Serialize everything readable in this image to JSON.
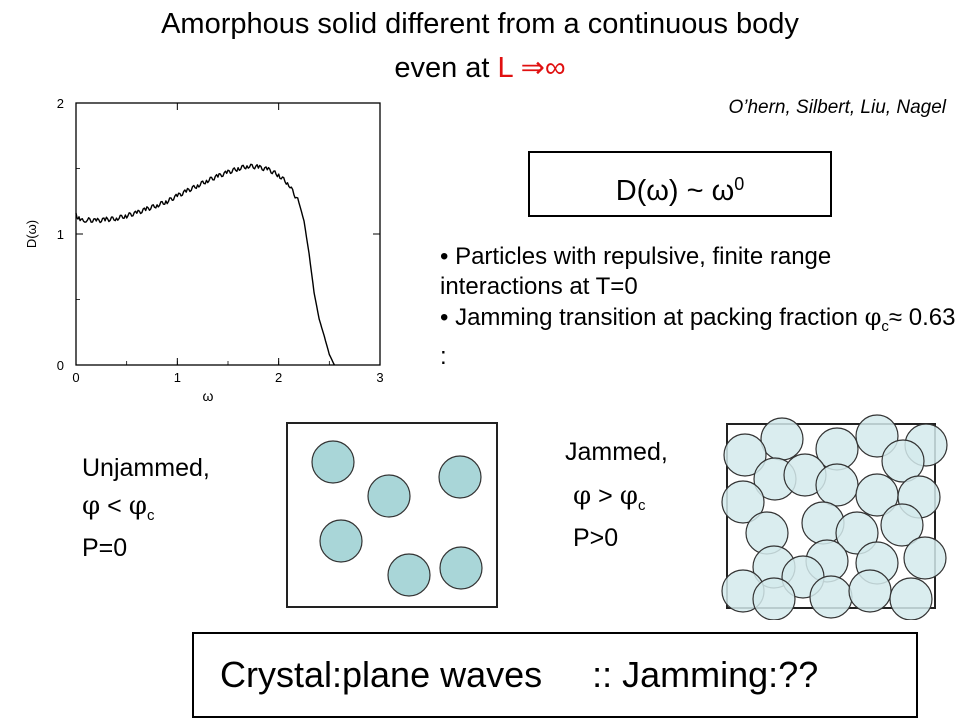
{
  "title_line1": "Amorphous solid different from a continuous body",
  "title_line2_prefix": "even at ",
  "title_line2_accent": "L ⇒∞",
  "accent_color": "#e01010",
  "authors": "O’hern, Silbert, Liu, Nagel",
  "formula": {
    "lhs": "D(ω) ~ ω",
    "exponent": "0"
  },
  "bullets": [
    {
      "text": "• Particles with repulsive, finite range interactions at T=0"
    },
    {
      "text": "• Jamming transition at packing fraction ",
      "phi": "φ",
      "sub": "c",
      "tail": "≈ 0.63 :"
    }
  ],
  "unjammed": {
    "label": "Unjammed,",
    "phi_a": "φ",
    "op": "<",
    "phi_b": "φ",
    "sub": "c",
    "pressure": "P=0"
  },
  "jammed": {
    "label": "Jammed,",
    "phi_a": "φ",
    "op": ">",
    "phi_b": "φ",
    "sub": "c",
    "pressure": "P>0"
  },
  "bottom": {
    "left": "Crystal:plane waves",
    "right": ":: Jamming:??"
  },
  "particle_color": "#a9d6d8",
  "chart_data": {
    "type": "line",
    "title": "",
    "xlabel": "ω",
    "ylabel": "D(ω)",
    "xlim": [
      0,
      3
    ],
    "ylim": [
      0,
      2
    ],
    "xticks": [
      0,
      1,
      2,
      3
    ],
    "yticks": [
      0,
      1,
      2
    ],
    "grid": false,
    "legend": "none",
    "series": [
      {
        "x": [
          0.0,
          0.02,
          0.05,
          0.1,
          0.2,
          0.3,
          0.4,
          0.5,
          0.6,
          0.7,
          0.8,
          0.9,
          1.0,
          1.1,
          1.2,
          1.3,
          1.4,
          1.5,
          1.6,
          1.7,
          1.8,
          1.9,
          2.0,
          2.1,
          2.2,
          2.25,
          2.3,
          2.35,
          2.4,
          2.45,
          2.5,
          2.55
        ],
        "y": [
          1.16,
          1.12,
          1.1,
          1.11,
          1.1,
          1.11,
          1.12,
          1.14,
          1.16,
          1.19,
          1.22,
          1.25,
          1.29,
          1.33,
          1.37,
          1.41,
          1.44,
          1.47,
          1.5,
          1.52,
          1.51,
          1.49,
          1.45,
          1.38,
          1.24,
          1.1,
          0.85,
          0.55,
          0.35,
          0.22,
          0.08,
          0.0
        ]
      }
    ]
  }
}
